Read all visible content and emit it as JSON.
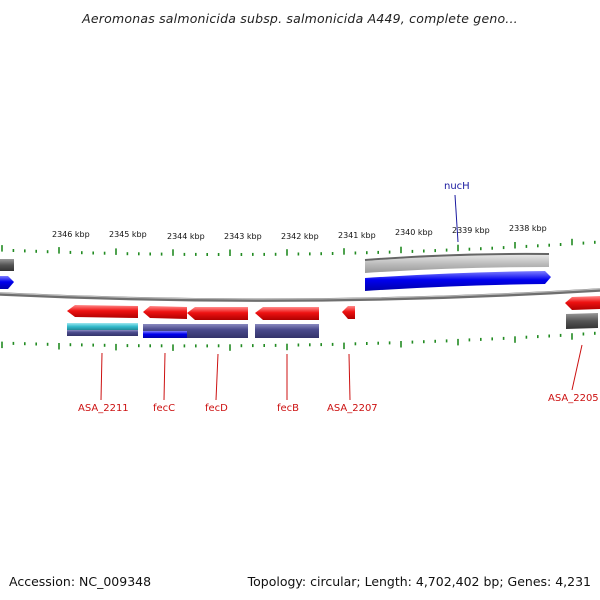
{
  "title": "Aeromonas salmonicida subsp. salmonicida A449, complete geno...",
  "footer": {
    "accession": "Accession: NC_009348",
    "topology": "Topology: circular; Length: 4,702,402 bp; Genes: 4,231"
  },
  "colors": {
    "backbone": "#777777",
    "tick": "#228b22",
    "gene_forward": "#0000ee",
    "gene_reverse": "#ee1111",
    "cds_slate": "#4a4a8c",
    "cds_cyan": "#33bbcc",
    "cds_gray": "#bbbbbb",
    "cds_dark": "#555555",
    "label_forward": "#1a1aa0",
    "label_reverse": "#cc1111"
  },
  "scale_labels": [
    "2346 kbp",
    "2345 kbp",
    "2344 kbp",
    "2343 kbp",
    "2342 kbp",
    "2341 kbp",
    "2340 kbp",
    "2339 kbp",
    "2338 kbp"
  ],
  "gene_labels": [
    {
      "text": "nucH",
      "strand": "forward"
    },
    {
      "text": "ASA_2211",
      "strand": "reverse"
    },
    {
      "text": "fecC",
      "strand": "reverse"
    },
    {
      "text": "fecD",
      "strand": "reverse"
    },
    {
      "text": "fecB",
      "strand": "reverse"
    },
    {
      "text": "ASA_2207",
      "strand": "reverse"
    },
    {
      "text": "ASA_2205",
      "strand": "reverse"
    }
  ]
}
